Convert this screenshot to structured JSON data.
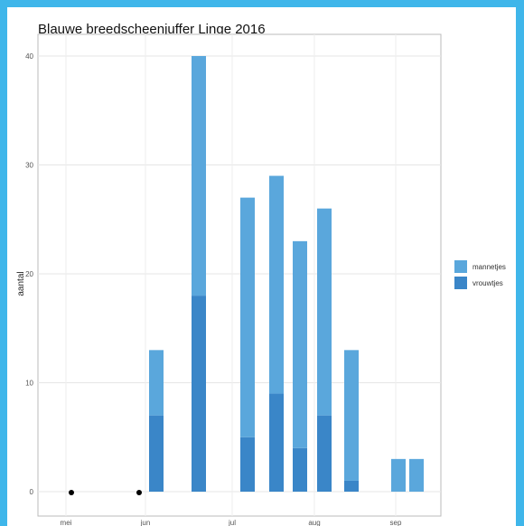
{
  "chart_data": {
    "type": "bar",
    "title": "Blauwe breedscheenjuffer Linge 2016",
    "xlabel": "",
    "ylabel": "aantal",
    "ylim": [
      0,
      40
    ],
    "yticks": [
      0,
      10,
      20,
      30,
      40
    ],
    "xticks": [
      "mei",
      "jun",
      "jul",
      "aug",
      "sep"
    ],
    "stacked": true,
    "grid": true,
    "legend_position": "right",
    "bars": [
      {
        "x": "jun",
        "vrouwtjes": 7,
        "mannetjes": 6
      },
      {
        "x": "jun",
        "vrouwtjes": 18,
        "mannetjes": 22
      },
      {
        "x": "jul",
        "vrouwtjes": 5,
        "mannetjes": 22
      },
      {
        "x": "jul",
        "vrouwtjes": 9,
        "mannetjes": 20
      },
      {
        "x": "aug",
        "vrouwtjes": 4,
        "mannetjes": 19
      },
      {
        "x": "aug",
        "vrouwtjes": 7,
        "mannetjes": 19
      },
      {
        "x": "aug",
        "vrouwtjes": 1,
        "mannetjes": 12
      },
      {
        "x": "sep",
        "vrouwtjes": 0,
        "mannetjes": 3
      },
      {
        "x": "sep",
        "vrouwtjes": 0,
        "mannetjes": 3
      }
    ],
    "zero_points": [
      "mei",
      "jun"
    ],
    "series": [
      {
        "name": "mannetjes",
        "color": "#5aa7dc"
      },
      {
        "name": "vrouwtjes",
        "color": "#3a86c8"
      }
    ]
  }
}
